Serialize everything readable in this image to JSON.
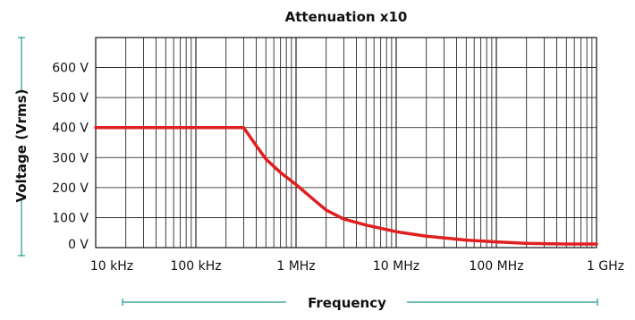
{
  "chart_data": {
    "type": "line",
    "title": "Attenuation x10",
    "xlabel": "Frequency",
    "ylabel": "Voltage (Vrms)",
    "x_scale": "log",
    "xlim": [
      10000,
      1000000000
    ],
    "ylim": [
      0,
      700
    ],
    "grid": true,
    "x_ticks": [
      {
        "value": 10000,
        "label": "10 kHz"
      },
      {
        "value": 100000,
        "label": "100 kHz"
      },
      {
        "value": 1000000,
        "label": "1 MHz"
      },
      {
        "value": 10000000,
        "label": "10 MHz"
      },
      {
        "value": 100000000,
        "label": "100 MHz"
      },
      {
        "value": 1000000000,
        "label": "1 GHz"
      }
    ],
    "y_ticks": [
      {
        "value": 0,
        "label": "0 V"
      },
      {
        "value": 100,
        "label": "100 V"
      },
      {
        "value": 200,
        "label": "200 V"
      },
      {
        "value": 300,
        "label": "300 V"
      },
      {
        "value": 400,
        "label": "400 V"
      },
      {
        "value": 500,
        "label": "500 V"
      },
      {
        "value": 600,
        "label": "600 V"
      }
    ],
    "series": [
      {
        "color": "#e02020",
        "x": [
          10000,
          100000,
          300000,
          400000,
          500000,
          700000,
          1000000,
          1500000,
          2000000,
          3000000,
          5000000,
          10000000,
          20000000,
          50000000,
          100000000,
          200000000,
          500000000,
          1000000000
        ],
        "y": [
          400,
          400,
          400,
          340,
          295,
          250,
          210,
          160,
          125,
          95,
          75,
          53,
          38,
          25,
          19,
          14,
          12,
          12
        ]
      }
    ]
  },
  "accent_color": "#1a9b8f"
}
